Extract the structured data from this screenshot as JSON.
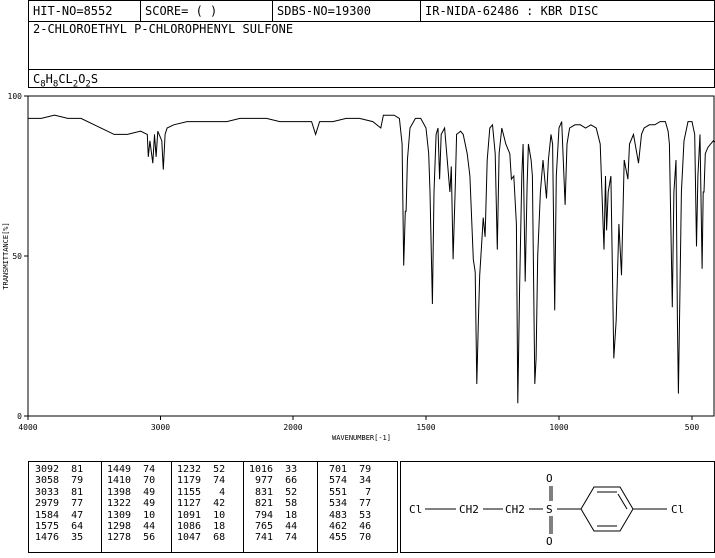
{
  "header": {
    "hit": "HIT-NO=8552",
    "score": "SCORE=  (   )",
    "sdbs": "SDBS-NO=19300",
    "ir": "IR-NIDA-62486 : KBR DISC",
    "compound": "2-CHLOROETHYL P-CHLOROPHENYL SULFONE",
    "formula": "C8H8CL2O2S"
  },
  "chart_data": {
    "type": "line",
    "xlabel": "WAVENUMBER[-1]",
    "ylabel": "TRANSMITTANCE[%]",
    "xlim": [
      4000,
      400
    ],
    "ylim": [
      0,
      100
    ],
    "x_ticks": [
      "4000",
      "3000",
      "2000",
      "1500",
      "1000",
      "500"
    ],
    "y_ticks": [
      "100",
      "50",
      "0"
    ],
    "series": [
      {
        "values": [
          [
            4000,
            93
          ],
          [
            3900,
            93
          ],
          [
            3800,
            94
          ],
          [
            3700,
            93
          ],
          [
            3600,
            93
          ],
          [
            3500,
            91
          ],
          [
            3400,
            89
          ],
          [
            3350,
            88
          ],
          [
            3250,
            88
          ],
          [
            3150,
            89
          ],
          [
            3100,
            88
          ],
          [
            3092,
            81
          ],
          [
            3080,
            86
          ],
          [
            3058,
            79
          ],
          [
            3045,
            88
          ],
          [
            3033,
            81
          ],
          [
            3020,
            89
          ],
          [
            2990,
            86
          ],
          [
            2979,
            77
          ],
          [
            2965,
            88
          ],
          [
            2950,
            90
          ],
          [
            2900,
            91
          ],
          [
            2800,
            92
          ],
          [
            2700,
            92
          ],
          [
            2600,
            92
          ],
          [
            2500,
            92
          ],
          [
            2400,
            93
          ],
          [
            2300,
            93
          ],
          [
            2200,
            93
          ],
          [
            2100,
            92
          ],
          [
            2000,
            92
          ],
          [
            1930,
            92
          ],
          [
            1915,
            88
          ],
          [
            1900,
            92
          ],
          [
            1850,
            92
          ],
          [
            1800,
            93
          ],
          [
            1750,
            93
          ],
          [
            1700,
            92
          ],
          [
            1670,
            90
          ],
          [
            1660,
            94
          ],
          [
            1640,
            94
          ],
          [
            1620,
            94
          ],
          [
            1600,
            93
          ],
          [
            1590,
            85
          ],
          [
            1584,
            47
          ],
          [
            1578,
            64
          ],
          [
            1575,
            64
          ],
          [
            1570,
            80
          ],
          [
            1560,
            90
          ],
          [
            1540,
            93
          ],
          [
            1520,
            93
          ],
          [
            1500,
            90
          ],
          [
            1490,
            82
          ],
          [
            1485,
            70
          ],
          [
            1476,
            35
          ],
          [
            1470,
            70
          ],
          [
            1462,
            88
          ],
          [
            1455,
            90
          ],
          [
            1449,
            74
          ],
          [
            1443,
            88
          ],
          [
            1430,
            90
          ],
          [
            1410,
            70
          ],
          [
            1405,
            78
          ],
          [
            1398,
            49
          ],
          [
            1390,
            72
          ],
          [
            1385,
            88
          ],
          [
            1370,
            89
          ],
          [
            1360,
            88
          ],
          [
            1345,
            82
          ],
          [
            1335,
            75
          ],
          [
            1322,
            49
          ],
          [
            1315,
            45
          ],
          [
            1309,
            10
          ],
          [
            1303,
            30
          ],
          [
            1298,
            44
          ],
          [
            1290,
            55
          ],
          [
            1285,
            62
          ],
          [
            1278,
            56
          ],
          [
            1270,
            80
          ],
          [
            1260,
            90
          ],
          [
            1250,
            91
          ],
          [
            1240,
            82
          ],
          [
            1232,
            52
          ],
          [
            1225,
            82
          ],
          [
            1215,
            90
          ],
          [
            1200,
            85
          ],
          [
            1185,
            82
          ],
          [
            1179,
            74
          ],
          [
            1170,
            75
          ],
          [
            1160,
            60
          ],
          [
            1155,
            4
          ],
          [
            1148,
            40
          ],
          [
            1140,
            75
          ],
          [
            1135,
            85
          ],
          [
            1127,
            42
          ],
          [
            1120,
            72
          ],
          [
            1115,
            85
          ],
          [
            1105,
            80
          ],
          [
            1100,
            75
          ],
          [
            1091,
            10
          ],
          [
            1086,
            18
          ],
          [
            1080,
            50
          ],
          [
            1070,
            70
          ],
          [
            1060,
            80
          ],
          [
            1047,
            68
          ],
          [
            1040,
            80
          ],
          [
            1030,
            88
          ],
          [
            1024,
            85
          ],
          [
            1016,
            33
          ],
          [
            1010,
            75
          ],
          [
            1000,
            90
          ],
          [
            990,
            92
          ],
          [
            977,
            66
          ],
          [
            970,
            85
          ],
          [
            960,
            90
          ],
          [
            940,
            91
          ],
          [
            920,
            91
          ],
          [
            900,
            90
          ],
          [
            880,
            91
          ],
          [
            860,
            90
          ],
          [
            845,
            85
          ],
          [
            831,
            52
          ],
          [
            825,
            75
          ],
          [
            821,
            58
          ],
          [
            815,
            70
          ],
          [
            805,
            75
          ],
          [
            794,
            18
          ],
          [
            785,
            30
          ],
          [
            775,
            60
          ],
          [
            765,
            44
          ],
          [
            755,
            80
          ],
          [
            741,
            74
          ],
          [
            735,
            85
          ],
          [
            720,
            88
          ],
          [
            701,
            79
          ],
          [
            690,
            88
          ],
          [
            680,
            90
          ],
          [
            660,
            91
          ],
          [
            640,
            91
          ],
          [
            620,
            92
          ],
          [
            600,
            92
          ],
          [
            590,
            89
          ],
          [
            585,
            85
          ],
          [
            574,
            34
          ],
          [
            568,
            70
          ],
          [
            560,
            80
          ],
          [
            555,
            30
          ],
          [
            551,
            7
          ],
          [
            545,
            40
          ],
          [
            540,
            70
          ],
          [
            530,
            86
          ],
          [
            515,
            92
          ],
          [
            500,
            92
          ],
          [
            490,
            88
          ],
          [
            483,
            53
          ],
          [
            478,
            75
          ],
          [
            470,
            88
          ],
          [
            462,
            46
          ],
          [
            458,
            70
          ],
          [
            455,
            70
          ],
          [
            450,
            82
          ],
          [
            440,
            84
          ],
          [
            420,
            86
          ],
          [
            400,
            85
          ]
        ]
      }
    ],
    "peak_table": [
      [
        [
          3092,
          81
        ],
        [
          3058,
          79
        ],
        [
          3033,
          81
        ],
        [
          2979,
          77
        ],
        [
          1584,
          47
        ],
        [
          1575,
          64
        ],
        [
          1476,
          35
        ]
      ],
      [
        [
          1449,
          74
        ],
        [
          1410,
          70
        ],
        [
          1398,
          49
        ],
        [
          1322,
          49
        ],
        [
          1309,
          10
        ],
        [
          1298,
          44
        ],
        [
          1278,
          56
        ]
      ],
      [
        [
          1232,
          52
        ],
        [
          1179,
          74
        ],
        [
          1155,
          4
        ],
        [
          1127,
          42
        ],
        [
          1091,
          10
        ],
        [
          1086,
          18
        ],
        [
          1047,
          68
        ]
      ],
      [
        [
          1016,
          33
        ],
        [
          977,
          66
        ],
        [
          831,
          52
        ],
        [
          821,
          58
        ],
        [
          794,
          18
        ],
        [
          765,
          44
        ],
        [
          741,
          74
        ]
      ],
      [
        [
          701,
          79
        ],
        [
          574,
          34
        ],
        [
          551,
          7
        ],
        [
          534,
          77
        ],
        [
          483,
          53
        ],
        [
          462,
          46
        ],
        [
          455,
          70
        ]
      ]
    ]
  },
  "structure": {
    "left": "Cl",
    "ch2a": "CH2",
    "ch2b": "CH2",
    "s": "S",
    "o_top": "O",
    "o_bottom": "O",
    "right": "Cl"
  }
}
